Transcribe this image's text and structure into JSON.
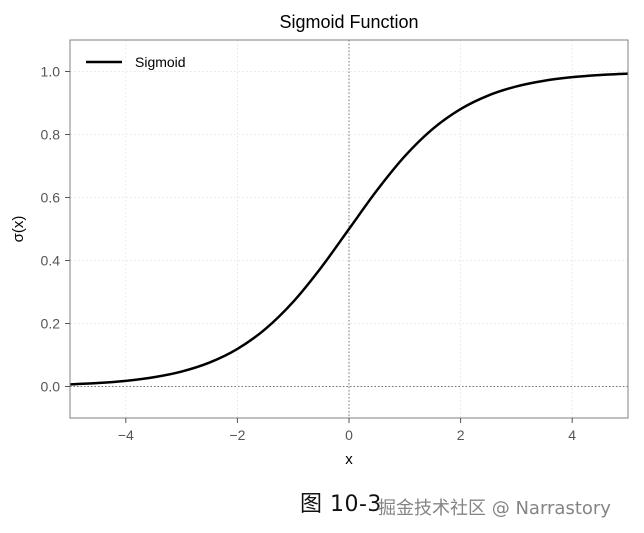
{
  "chart_data": {
    "type": "line",
    "title": "Sigmoid Function",
    "xlabel": "x",
    "ylabel": "σ(x)",
    "xlim": [
      -5,
      5
    ],
    "ylim": [
      -0.1,
      1.1
    ],
    "xticks": [
      -4,
      -2,
      0,
      2,
      4
    ],
    "xtick_labels": [
      "−4",
      "−2",
      "0",
      "2",
      "4"
    ],
    "yticks": [
      0.0,
      0.2,
      0.4,
      0.6,
      0.8,
      1.0
    ],
    "ytick_labels": [
      "0.0",
      "0.2",
      "0.4",
      "0.6",
      "0.8",
      "1.0"
    ],
    "grid": true,
    "legend": {
      "position": "top-left"
    },
    "reference_lines": {
      "x": 0,
      "y": 0
    },
    "series": [
      {
        "name": "Sigmoid",
        "color": "#000000",
        "x": [
          -5,
          -4.5,
          -4,
          -3.5,
          -3,
          -2.5,
          -2,
          -1.5,
          -1,
          -0.5,
          0,
          0.5,
          1,
          1.5,
          2,
          2.5,
          3,
          3.5,
          4,
          4.5,
          5
        ],
        "y": [
          0.0067,
          0.011,
          0.018,
          0.0293,
          0.0474,
          0.0759,
          0.1192,
          0.1824,
          0.2689,
          0.3775,
          0.5,
          0.6225,
          0.7311,
          0.8176,
          0.8808,
          0.9241,
          0.9526,
          0.9707,
          0.982,
          0.989,
          0.9933
        ]
      }
    ]
  },
  "caption": "图 10-3",
  "watermark": "掘金技术社区 @ Narrastory"
}
